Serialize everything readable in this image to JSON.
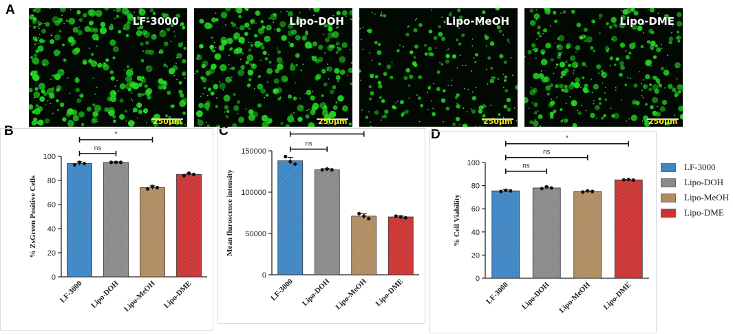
{
  "panel_labels": {
    "a": "A",
    "b": "B",
    "c": "C",
    "d": "D"
  },
  "micrographs": [
    {
      "label": "LF-3000",
      "scale": "250µm",
      "density": 0.9
    },
    {
      "label": "Lipo-DOH",
      "scale": "250µm",
      "density": 0.85
    },
    {
      "label": "Lipo-MeOH",
      "scale": "250µm",
      "density": 0.45
    },
    {
      "label": "Lipo-DME",
      "scale": "250µm",
      "density": 0.75
    }
  ],
  "colors": {
    "LF-3000": "#3f86c3",
    "Lipo-DOH": "#8a8a8a",
    "Lipo-MeOH": "#b08c62",
    "Lipo-DME": "#cc3434",
    "fluorescence": "#22dd22"
  },
  "legend": [
    "LF-3000",
    "Lipo-DOH",
    "Lipo-MeOH",
    "Lipo-DME"
  ],
  "chart_data": [
    {
      "panel": "B",
      "type": "bar",
      "categories": [
        "LF-3000",
        "Lipo-DOH",
        "Lipo-MeOH",
        "Lipo-DME"
      ],
      "values": [
        94,
        95,
        74,
        85
      ],
      "errors": [
        1.5,
        0.5,
        1.5,
        1
      ],
      "points": [
        [
          93,
          95,
          94
        ],
        [
          95,
          95,
          95
        ],
        [
          73,
          75,
          74
        ],
        [
          84,
          86,
          85
        ]
      ],
      "ylabel": "% ZsGreen Positive Cells",
      "ylim": [
        0,
        100
      ],
      "yticks": [
        0,
        20,
        40,
        60,
        80,
        100
      ],
      "significance": [
        {
          "from": 0,
          "to": 1,
          "label": "ns"
        },
        {
          "from": 0,
          "to": 2,
          "label": "*"
        },
        {
          "from": 0,
          "to": 3,
          "label": "*"
        }
      ]
    },
    {
      "panel": "C",
      "type": "bar",
      "categories": [
        "LF-3000",
        "Lipo-DOH",
        "Lipo-MeOH",
        "Lipo-DME"
      ],
      "values": [
        138000,
        127000,
        71000,
        70000
      ],
      "errors": [
        4000,
        1500,
        3000,
        1500
      ],
      "points": [
        [
          143000,
          137000,
          134000
        ],
        [
          127000,
          128000,
          127000
        ],
        [
          74000,
          71000,
          68000
        ],
        [
          71000,
          70000,
          69000
        ]
      ],
      "ylabel": "Mean fluroscence intensity",
      "ylim": [
        0,
        150000
      ],
      "yticks": [
        0,
        50000,
        100000,
        150000
      ],
      "significance": [
        {
          "from": 0,
          "to": 1,
          "label": "ns"
        },
        {
          "from": 0,
          "to": 2,
          "label": "*"
        },
        {
          "from": 0,
          "to": 3,
          "label": "*"
        }
      ]
    },
    {
      "panel": "D",
      "type": "bar",
      "categories": [
        "LF-3000",
        "Lipo-DOH",
        "Lipo-MeOH",
        "Lipo-DME"
      ],
      "values": [
        75.5,
        78,
        75,
        85
      ],
      "errors": [
        1,
        1,
        0.5,
        0.3
      ],
      "points": [
        [
          75,
          76,
          75.5
        ],
        [
          77.5,
          79,
          78
        ],
        [
          74.5,
          75.5,
          75
        ],
        [
          85,
          85.3,
          84.8
        ]
      ],
      "ylabel": "% Cell Viability",
      "ylim": [
        0,
        100
      ],
      "yticks": [
        0,
        20,
        40,
        60,
        80,
        100
      ],
      "significance": [
        {
          "from": 0,
          "to": 1,
          "label": "ns"
        },
        {
          "from": 0,
          "to": 2,
          "label": "ns"
        },
        {
          "from": 0,
          "to": 3,
          "label": "*"
        }
      ]
    }
  ]
}
